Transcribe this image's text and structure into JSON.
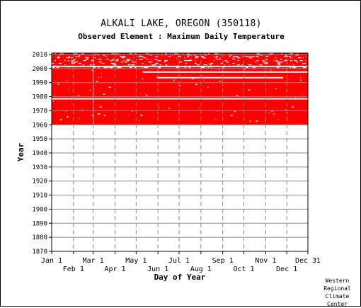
{
  "chart_data": {
    "type": "heatmap",
    "title": "ALKALI LAKE, OREGON   (350118)",
    "subtitle": "Observed Element : Maximum Daily Temperature",
    "xlabel": "Day of Year",
    "ylabel": "Year",
    "ylim": [
      1870,
      2011
    ],
    "yticks": [
      1870,
      1880,
      1890,
      1900,
      1910,
      1920,
      1930,
      1940,
      1950,
      1960,
      1970,
      1980,
      1990,
      2000,
      2010
    ],
    "xticks_top_row": [
      "Jan 1",
      "Mar 1",
      "May 1",
      "Jul 1",
      "Sep 1",
      "Nov 1",
      "Dec 31"
    ],
    "xticks_bottom_row": [
      "Feb 1",
      "Apr 1",
      "Jun 1",
      "Aug 1",
      "Oct 1",
      "Dec 1"
    ],
    "grid": true,
    "observed_color": "#ff0000",
    "series": [
      {
        "status": "observed",
        "first_year": 1960,
        "last_year": 2011,
        "notes_about_gaps": "Mostly complete record from 1960 onward with scattered missing days, heavier gaps around 2000-2010"
      }
    ],
    "gap_rows": [
      {
        "year": 1978,
        "from_day": 1,
        "to_day": 365
      },
      {
        "year": 1997,
        "from_day": 130,
        "to_day": 365
      },
      {
        "year": 2001,
        "from_day": 1,
        "to_day": 365
      },
      {
        "year": 1993,
        "from_day": 150,
        "to_day": 330
      }
    ],
    "gap_vertical": [
      {
        "day": 60,
        "from_year": 1960,
        "to_year": 2010
      }
    ]
  },
  "credit": [
    "Western",
    "Regional",
    "Climate",
    "Center"
  ]
}
